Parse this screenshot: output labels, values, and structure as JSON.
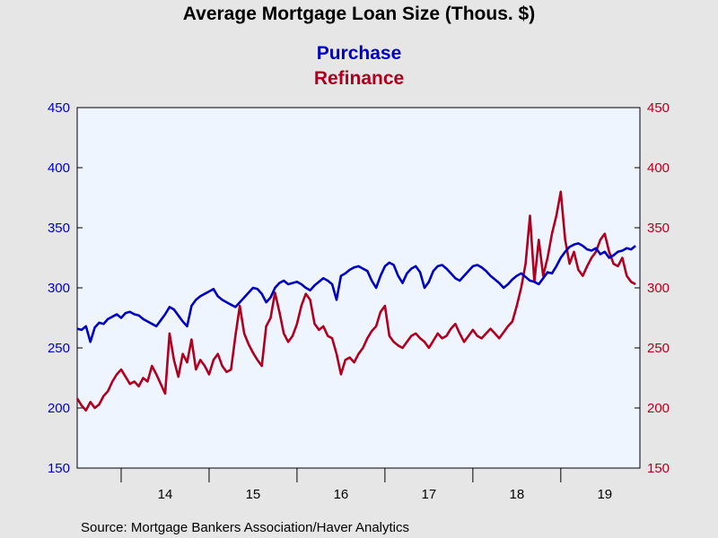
{
  "chart_data": {
    "type": "line",
    "title": "Average Mortgage Loan Size (Thous. $)",
    "source": "Source:  Mortgage Bankers Association/Haver Analytics",
    "x_labels": [
      "14",
      "15",
      "16",
      "17",
      "18",
      "19"
    ],
    "xlim": [
      2013.5,
      2019.9
    ],
    "y_left": {
      "ticks": [
        "150",
        "200",
        "250",
        "300",
        "350",
        "400",
        "450"
      ],
      "ylim": [
        150,
        450
      ]
    },
    "y_right": {
      "ticks": [
        "150",
        "200",
        "250",
        "300",
        "350",
        "400",
        "450"
      ],
      "ylim": [
        150,
        450
      ]
    },
    "grid": false,
    "legend_position": "top-center",
    "colors": {
      "purchase": "#0000c0",
      "refinance": "#b00020",
      "plot_bg": "#eef5ff",
      "page_bg": "#e6e6e6"
    },
    "series": [
      {
        "name": "Purchase",
        "axis": "left",
        "x": [
          2013.5,
          2013.55,
          2013.6,
          2013.65,
          2013.7,
          2013.75,
          2013.8,
          2013.85,
          2013.9,
          2013.95,
          2014.0,
          2014.05,
          2014.1,
          2014.15,
          2014.2,
          2014.25,
          2014.3,
          2014.35,
          2014.4,
          2014.45,
          2014.5,
          2014.55,
          2014.6,
          2014.65,
          2014.7,
          2014.75,
          2014.8,
          2014.85,
          2014.9,
          2014.95,
          2015.0,
          2015.05,
          2015.1,
          2015.15,
          2015.2,
          2015.25,
          2015.3,
          2015.35,
          2015.4,
          2015.45,
          2015.5,
          2015.55,
          2015.6,
          2015.65,
          2015.7,
          2015.75,
          2015.8,
          2015.85,
          2015.9,
          2015.95,
          2016.0,
          2016.05,
          2016.1,
          2016.15,
          2016.2,
          2016.25,
          2016.3,
          2016.35,
          2016.4,
          2016.45,
          2016.5,
          2016.55,
          2016.6,
          2016.65,
          2016.7,
          2016.75,
          2016.8,
          2016.85,
          2016.9,
          2016.95,
          2017.0,
          2017.05,
          2017.1,
          2017.15,
          2017.2,
          2017.25,
          2017.3,
          2017.35,
          2017.4,
          2017.45,
          2017.5,
          2017.55,
          2017.6,
          2017.65,
          2017.7,
          2017.75,
          2017.8,
          2017.85,
          2017.9,
          2017.95,
          2018.0,
          2018.05,
          2018.1,
          2018.15,
          2018.2,
          2018.25,
          2018.3,
          2018.35,
          2018.4,
          2018.45,
          2018.5,
          2018.55,
          2018.6,
          2018.65,
          2018.7,
          2018.75,
          2018.8,
          2018.85,
          2018.9,
          2018.95,
          2019.0,
          2019.05,
          2019.1,
          2019.15,
          2019.2,
          2019.25,
          2019.3,
          2019.35,
          2019.4,
          2019.45,
          2019.5,
          2019.55,
          2019.6,
          2019.65,
          2019.7,
          2019.75,
          2019.8,
          2019.85
        ],
        "values": [
          266,
          265,
          268,
          255,
          267,
          271,
          270,
          274,
          276,
          278,
          275,
          279,
          280,
          278,
          277,
          274,
          272,
          270,
          268,
          273,
          278,
          284,
          282,
          277,
          272,
          268,
          285,
          290,
          293,
          295,
          297,
          299,
          293,
          290,
          288,
          286,
          284,
          288,
          292,
          296,
          300,
          299,
          295,
          288,
          292,
          300,
          304,
          306,
          303,
          304,
          305,
          303,
          300,
          298,
          302,
          305,
          308,
          306,
          303,
          290,
          310,
          312,
          315,
          317,
          318,
          316,
          314,
          306,
          300,
          310,
          318,
          321,
          319,
          310,
          304,
          312,
          316,
          318,
          313,
          300,
          305,
          314,
          318,
          319,
          316,
          312,
          308,
          306,
          310,
          314,
          318,
          319,
          317,
          314,
          310,
          307,
          304,
          300,
          303,
          307,
          310,
          312,
          309,
          306,
          305,
          303,
          308,
          313,
          312,
          318,
          325,
          330,
          334,
          336,
          337,
          335,
          332,
          331,
          333,
          328,
          330,
          325,
          327,
          330,
          331,
          333,
          332,
          335
        ]
      },
      {
        "name": "Refinance",
        "axis": "right",
        "x": [
          2013.5,
          2013.55,
          2013.6,
          2013.65,
          2013.7,
          2013.75,
          2013.8,
          2013.85,
          2013.9,
          2013.95,
          2014.0,
          2014.05,
          2014.1,
          2014.15,
          2014.2,
          2014.25,
          2014.3,
          2014.35,
          2014.4,
          2014.45,
          2014.5,
          2014.55,
          2014.6,
          2014.65,
          2014.7,
          2014.75,
          2014.8,
          2014.85,
          2014.9,
          2014.95,
          2015.0,
          2015.05,
          2015.1,
          2015.15,
          2015.2,
          2015.25,
          2015.3,
          2015.35,
          2015.4,
          2015.45,
          2015.5,
          2015.55,
          2015.6,
          2015.65,
          2015.7,
          2015.75,
          2015.8,
          2015.85,
          2015.9,
          2015.95,
          2016.0,
          2016.05,
          2016.1,
          2016.15,
          2016.2,
          2016.25,
          2016.3,
          2016.35,
          2016.4,
          2016.45,
          2016.5,
          2016.55,
          2016.6,
          2016.65,
          2016.7,
          2016.75,
          2016.8,
          2016.85,
          2016.9,
          2016.95,
          2017.0,
          2017.05,
          2017.1,
          2017.15,
          2017.2,
          2017.25,
          2017.3,
          2017.35,
          2017.4,
          2017.45,
          2017.5,
          2017.55,
          2017.6,
          2017.65,
          2017.7,
          2017.75,
          2017.8,
          2017.85,
          2017.9,
          2017.95,
          2018.0,
          2018.05,
          2018.1,
          2018.15,
          2018.2,
          2018.25,
          2018.3,
          2018.35,
          2018.4,
          2018.45,
          2018.5,
          2018.55,
          2018.6,
          2018.65,
          2018.7,
          2018.75,
          2018.8,
          2018.85,
          2018.9,
          2018.95,
          2019.0,
          2019.05,
          2019.1,
          2019.15,
          2019.2,
          2019.25,
          2019.3,
          2019.35,
          2019.4,
          2019.45,
          2019.5,
          2019.55,
          2019.6,
          2019.65,
          2019.7,
          2019.75,
          2019.8,
          2019.85
        ],
        "values": [
          208,
          202,
          198,
          205,
          200,
          203,
          210,
          214,
          222,
          228,
          232,
          226,
          220,
          222,
          218,
          225,
          222,
          235,
          228,
          220,
          212,
          262,
          240,
          226,
          245,
          238,
          257,
          232,
          240,
          235,
          228,
          240,
          245,
          235,
          230,
          232,
          260,
          285,
          262,
          253,
          246,
          240,
          235,
          268,
          275,
          296,
          280,
          262,
          255,
          260,
          270,
          285,
          295,
          290,
          270,
          265,
          268,
          260,
          258,
          245,
          228,
          240,
          242,
          238,
          245,
          250,
          258,
          264,
          268,
          280,
          285,
          260,
          255,
          252,
          250,
          255,
          260,
          262,
          258,
          255,
          250,
          256,
          262,
          258,
          260,
          266,
          270,
          262,
          255,
          260,
          265,
          260,
          258,
          262,
          266,
          262,
          258,
          263,
          268,
          272,
          285,
          300,
          320,
          360,
          305,
          340,
          310,
          325,
          345,
          360,
          380,
          340,
          320,
          330,
          315,
          310,
          318,
          325,
          330,
          340,
          345,
          330,
          320,
          318,
          325,
          310,
          305,
          303
        ]
      }
    ]
  }
}
